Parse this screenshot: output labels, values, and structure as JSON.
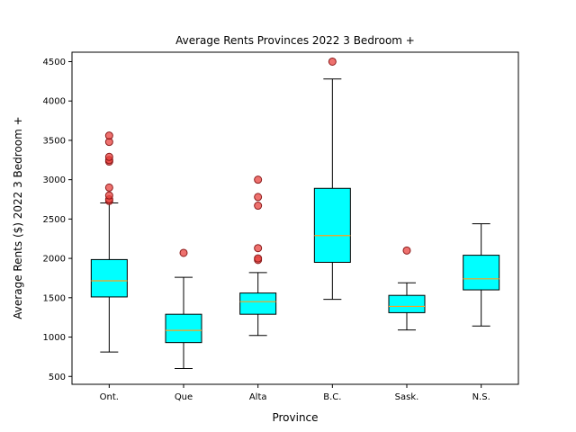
{
  "chart_data": {
    "type": "box",
    "title": "Average Rents Provinces 2022 3 Bedroom +",
    "xlabel": "Province",
    "ylabel": "Average Rents ($) 2022 3 Bedroom +",
    "categories": [
      "Ont.",
      "Que",
      "Alta",
      "B.C.",
      "Sask.",
      "N.S."
    ],
    "ylim": [
      400,
      4620
    ],
    "yticks": [
      500,
      1000,
      1500,
      2000,
      2500,
      3000,
      3500,
      4000,
      4500
    ],
    "grid": false,
    "colors": {
      "box_fill": "#00ffff",
      "box_edge": "#000000",
      "median": "#ff9f1a",
      "outlier_fill": "#e8413d",
      "outlier_edge": "#8b1a1a"
    },
    "boxes": [
      {
        "category": "Ont.",
        "whisker_low": 810,
        "q1": 1510,
        "median": 1715,
        "q3": 1985,
        "whisker_high": 2705,
        "outliers": [
          2730,
          2750,
          2800,
          2900,
          3230,
          3250,
          3290,
          3480,
          3560
        ]
      },
      {
        "category": "Que",
        "whisker_low": 600,
        "q1": 930,
        "median": 1085,
        "q3": 1290,
        "whisker_high": 1760,
        "outliers": [
          2070
        ]
      },
      {
        "category": "Alta",
        "whisker_low": 1020,
        "q1": 1290,
        "median": 1450,
        "q3": 1560,
        "whisker_high": 1820,
        "outliers": [
          1980,
          2000,
          2130,
          2670,
          2780,
          3000
        ]
      },
      {
        "category": "B.C.",
        "whisker_low": 1480,
        "q1": 1950,
        "median": 2290,
        "q3": 2890,
        "whisker_high": 4280,
        "outliers": [
          4500
        ]
      },
      {
        "category": "Sask.",
        "whisker_low": 1090,
        "q1": 1310,
        "median": 1390,
        "q3": 1530,
        "whisker_high": 1690,
        "outliers": [
          2100
        ]
      },
      {
        "category": "N.S.",
        "whisker_low": 1140,
        "q1": 1600,
        "median": 1740,
        "q3": 2040,
        "whisker_high": 2440,
        "outliers": []
      }
    ]
  }
}
